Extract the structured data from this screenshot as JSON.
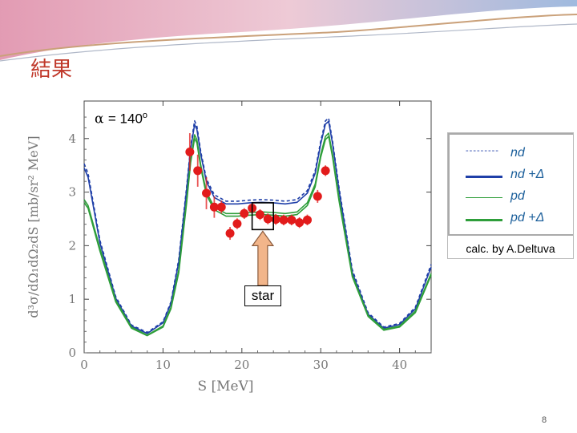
{
  "slide": {
    "title": "結果",
    "page_number": "8",
    "accent_colors": {
      "header_pink": "#d97a9a",
      "header_blue": "#7fa3d4",
      "data_red": "#e21b1b"
    }
  },
  "chart_data": {
    "type": "line",
    "annotation": {
      "symbol": "α",
      "equals": "= 140",
      "unit": "o"
    },
    "xlabel": "S  [MeV]",
    "ylabel": "d³σ/dΩ₁dΩ₂dS  [mb/sr² MeV]",
    "xlim": [
      0,
      44
    ],
    "ylim": [
      0,
      4.7
    ],
    "x_ticks": [
      0,
      10,
      20,
      30,
      40
    ],
    "y_ticks": [
      0,
      1,
      2,
      3,
      4
    ],
    "grid": false,
    "legend_position": "right",
    "series": [
      {
        "name": "nd",
        "color": "#1f3fa8",
        "style": "dashed",
        "x": [
          0,
          0.5,
          2,
          4,
          6,
          8,
          10,
          11,
          12,
          13,
          13.5,
          14,
          14.3,
          14.8,
          15.5,
          16.5,
          18,
          19.5,
          21,
          22.5,
          24,
          25.5,
          27,
          28.3,
          29.3,
          30,
          30.6,
          31,
          31.5,
          32.3,
          34,
          36,
          38,
          40,
          42,
          44
        ],
        "y": [
          3.53,
          3.35,
          2.1,
          1.05,
          0.52,
          0.38,
          0.58,
          0.95,
          1.75,
          3.1,
          3.85,
          4.33,
          4.23,
          3.75,
          3.25,
          2.95,
          2.83,
          2.83,
          2.85,
          2.86,
          2.85,
          2.83,
          2.86,
          3.03,
          3.4,
          3.95,
          4.33,
          4.38,
          3.95,
          3.1,
          1.55,
          0.75,
          0.48,
          0.55,
          0.85,
          1.65
        ]
      },
      {
        "name": "nd +Δ",
        "color": "#1f3fa8",
        "style": "solid",
        "x": [
          0,
          0.5,
          2,
          4,
          6,
          8,
          10,
          11,
          12,
          13,
          13.5,
          14,
          14.3,
          14.8,
          15.5,
          16.5,
          18,
          19.5,
          21,
          22.5,
          24,
          25.5,
          27,
          28.3,
          29.3,
          30,
          30.6,
          31,
          31.5,
          32.3,
          34,
          36,
          38,
          40,
          42,
          44
        ],
        "y": [
          3.45,
          3.28,
          2.05,
          1.02,
          0.5,
          0.36,
          0.56,
          0.92,
          1.7,
          3.05,
          3.8,
          4.26,
          4.17,
          3.7,
          3.2,
          2.9,
          2.78,
          2.78,
          2.8,
          2.81,
          2.8,
          2.78,
          2.81,
          2.98,
          3.35,
          3.9,
          4.27,
          4.32,
          3.9,
          3.05,
          1.5,
          0.72,
          0.46,
          0.53,
          0.82,
          1.6
        ]
      },
      {
        "name": "pd",
        "color": "#2e9e3a",
        "style": "solid",
        "x": [
          0,
          0.5,
          2,
          4,
          6,
          8,
          10,
          11,
          12,
          13,
          13.5,
          14,
          14.3,
          14.8,
          15.5,
          16.5,
          18,
          19.5,
          21,
          22.5,
          24,
          25.5,
          27,
          28.3,
          29.3,
          30,
          30.6,
          31,
          31.5,
          32.3,
          34,
          36,
          38,
          40,
          42,
          44
        ],
        "y": [
          2.86,
          2.75,
          1.95,
          0.98,
          0.48,
          0.33,
          0.5,
          0.85,
          1.55,
          2.85,
          3.6,
          4.07,
          3.98,
          3.5,
          3.0,
          2.72,
          2.6,
          2.6,
          2.62,
          2.63,
          2.62,
          2.6,
          2.63,
          2.8,
          3.15,
          3.7,
          4.04,
          4.1,
          3.7,
          2.9,
          1.45,
          0.7,
          0.44,
          0.5,
          0.78,
          1.48
        ]
      },
      {
        "name": "pd +Δ",
        "color": "#2e9e3a",
        "style": "solid",
        "x": [
          0,
          0.5,
          2,
          4,
          6,
          8,
          10,
          11,
          12,
          13,
          13.5,
          14,
          14.3,
          14.8,
          15.5,
          16.5,
          18,
          19.5,
          21,
          22.5,
          24,
          25.5,
          27,
          28.3,
          29.3,
          30,
          30.6,
          31,
          31.5,
          32.3,
          34,
          36,
          38,
          40,
          42,
          44
        ],
        "y": [
          2.8,
          2.7,
          1.9,
          0.95,
          0.46,
          0.32,
          0.48,
          0.82,
          1.5,
          2.8,
          3.55,
          4.0,
          3.92,
          3.45,
          2.95,
          2.67,
          2.55,
          2.55,
          2.57,
          2.58,
          2.57,
          2.55,
          2.58,
          2.75,
          3.1,
          3.65,
          3.98,
          4.04,
          3.65,
          2.85,
          1.42,
          0.68,
          0.42,
          0.48,
          0.75,
          1.45
        ]
      },
      {
        "name": "data",
        "type": "scatter",
        "color": "#e21b1b",
        "x": [
          13.4,
          14.4,
          15.5,
          16.5,
          17.4,
          18.5,
          19.4,
          20.3,
          21.3,
          22.3,
          23.3,
          24.3,
          25.3,
          26.3,
          27.3,
          28.3,
          29.6,
          30.6
        ],
        "y": [
          3.75,
          3.4,
          2.98,
          2.72,
          2.72,
          2.23,
          2.41,
          2.6,
          2.7,
          2.58,
          2.5,
          2.49,
          2.48,
          2.48,
          2.43,
          2.48,
          2.92,
          3.4
        ],
        "err": [
          0.35,
          0.3,
          0.3,
          0.2,
          0.12,
          0.12,
          0.1,
          0.1,
          0.1,
          0.1,
          0.1,
          0.1,
          0.1,
          0.1,
          0.1,
          0.1,
          0.12,
          0.1
        ]
      }
    ],
    "legend": {
      "entries": [
        {
          "label": "nd",
          "line": "---------"
        },
        {
          "label": "nd +Δ"
        },
        {
          "label": "pd"
        },
        {
          "label": "pd +Δ"
        }
      ],
      "credit": "calc. by A.Deltuva"
    },
    "callout": {
      "label": "star",
      "x_range": [
        21.3,
        24
      ],
      "y_range": [
        2.3,
        2.8
      ]
    }
  }
}
